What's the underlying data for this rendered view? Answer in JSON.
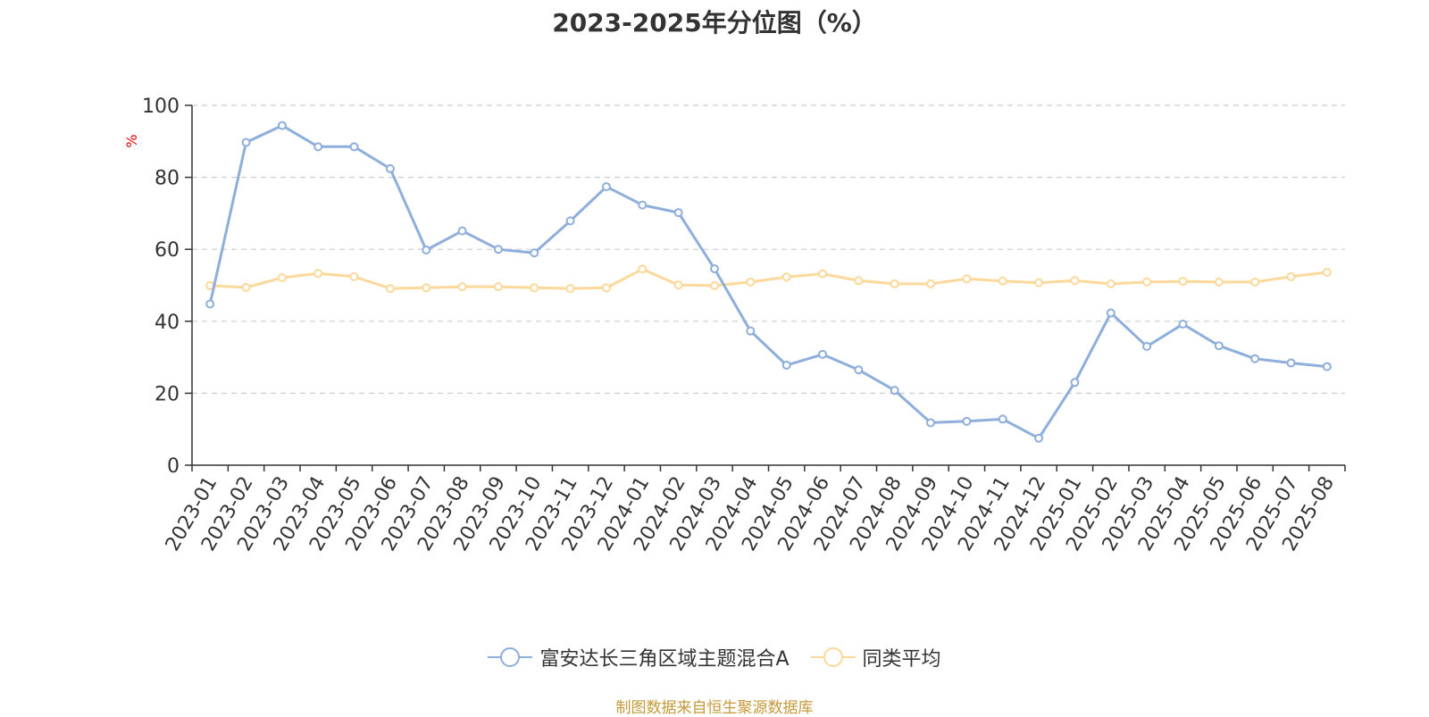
{
  "chart_data": {
    "type": "line",
    "title": "2023-2025年分位图（%）",
    "ylabel": "%",
    "xlabel": "",
    "ylim": [
      0,
      100
    ],
    "yticks": [
      0,
      20,
      40,
      60,
      80,
      100
    ],
    "grid": true,
    "legend_position": "bottom",
    "categories": [
      "2023-01",
      "2023-02",
      "2023-03",
      "2023-04",
      "2023-05",
      "2023-06",
      "2023-07",
      "2023-08",
      "2023-09",
      "2023-10",
      "2023-11",
      "2023-12",
      "2024-01",
      "2024-02",
      "2024-03",
      "2024-04",
      "2024-05",
      "2024-06",
      "2024-07",
      "2024-08",
      "2024-09",
      "2024-10",
      "2024-11",
      "2024-12",
      "2025-01",
      "2025-02",
      "2025-03",
      "2025-04",
      "2025-05",
      "2025-06",
      "2025-07",
      "2025-08"
    ],
    "series": [
      {
        "name": "富安达长三角区域主题混合A",
        "color": "#8eaedb",
        "values": [
          44.8,
          89.7,
          94.4,
          88.5,
          88.5,
          82.4,
          59.8,
          65.1,
          60.0,
          59.0,
          67.9,
          77.4,
          72.3,
          70.2,
          54.6,
          37.3,
          27.8,
          30.8,
          26.5,
          20.8,
          11.8,
          12.2,
          12.8,
          7.5,
          23.0,
          42.3,
          33.0,
          39.2,
          33.2,
          29.6,
          28.4,
          27.4
        ]
      },
      {
        "name": "同类平均",
        "color": "#fcd89a",
        "values": [
          49.9,
          49.4,
          52.1,
          53.3,
          52.4,
          49.1,
          49.3,
          49.6,
          49.6,
          49.3,
          49.1,
          49.3,
          54.5,
          50.1,
          49.9,
          50.9,
          52.3,
          53.2,
          51.3,
          50.4,
          50.4,
          51.8,
          51.2,
          50.7,
          51.3,
          50.4,
          50.9,
          51.1,
          50.9,
          50.9,
          52.4,
          53.6
        ]
      }
    ]
  },
  "source_text": "制图数据来自恒生聚源数据库"
}
